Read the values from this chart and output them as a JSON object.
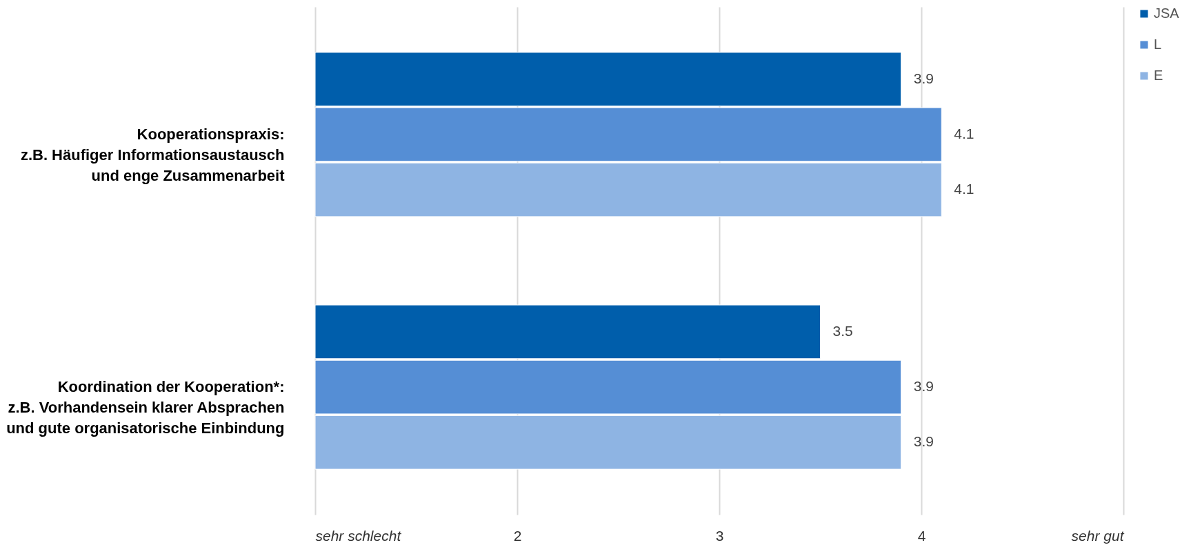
{
  "chart_data": {
    "type": "bar",
    "orientation": "horizontal",
    "categories": [
      "Kooperationspraxis:\nz.B. Häufiger Informationsaustausch\nund enge Zusammenarbeit",
      "Koordination der Kooperation*:\nz.B. Vorhandensein klarer Absprachen\nund gute organisatorische Einbindung"
    ],
    "series": [
      {
        "name": "JSA",
        "color": "#005eab",
        "values": [
          3.9,
          3.5
        ]
      },
      {
        "name": "L",
        "color": "#558ed5",
        "values": [
          4.1,
          3.9
        ]
      },
      {
        "name": "E",
        "color": "#8eb4e3",
        "values": [
          4.1,
          3.9
        ]
      }
    ],
    "xlim": [
      1,
      5
    ],
    "xticks": [
      {
        "value": 1,
        "label": "sehr schlecht"
      },
      2,
      3,
      4,
      {
        "value": 5,
        "label": "sehr gut"
      }
    ],
    "grid": "x",
    "legend": "top right",
    "data_labels": true
  }
}
